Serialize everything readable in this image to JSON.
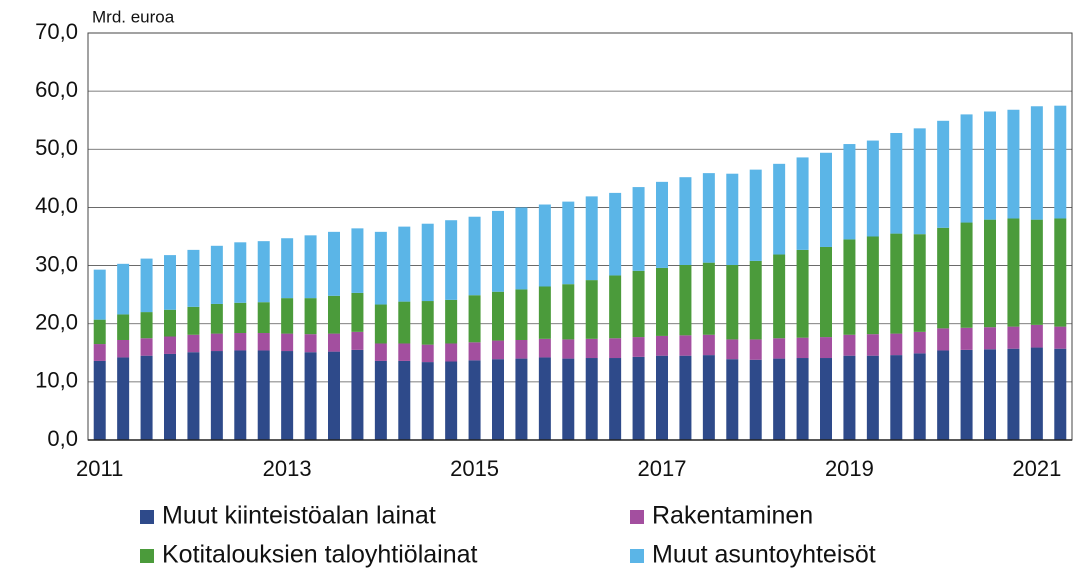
{
  "chart_data": {
    "type": "stacked_bar",
    "y_label": "Mrd. euroa",
    "categories": [
      "2011",
      null,
      null,
      null,
      null,
      null,
      null,
      null,
      "2013",
      null,
      null,
      null,
      null,
      null,
      null,
      null,
      "2015",
      null,
      null,
      null,
      null,
      null,
      null,
      null,
      "2017",
      null,
      null,
      null,
      null,
      null,
      null,
      null,
      "2019",
      null,
      null,
      null,
      null,
      null,
      null,
      null,
      "2021",
      null
    ],
    "series": [
      {
        "name": "Muut kiinteistöalan lainat",
        "color": "#2e4a8a",
        "values": [
          13.6,
          14.2,
          14.5,
          14.8,
          15.1,
          15.3,
          15.4,
          15.4,
          15.3,
          15.1,
          15.2,
          15.5,
          13.6,
          13.6,
          13.4,
          13.5,
          13.7,
          13.9,
          14.0,
          14.2,
          14.0,
          14.1,
          14.1,
          14.3,
          14.5,
          14.5,
          14.6,
          13.9,
          13.8,
          14.0,
          14.1,
          14.1,
          14.5,
          14.5,
          14.6,
          14.9,
          15.4,
          15.5,
          15.6,
          15.7,
          15.9,
          15.7
        ]
      },
      {
        "name": "Rakentaminen",
        "color": "#a34f9f",
        "values": [
          2.9,
          3.0,
          3.0,
          3.0,
          3.0,
          3.0,
          3.0,
          3.0,
          3.0,
          3.1,
          3.1,
          3.1,
          3.0,
          3.0,
          3.0,
          3.1,
          3.1,
          3.2,
          3.2,
          3.2,
          3.3,
          3.3,
          3.4,
          3.4,
          3.4,
          3.5,
          3.5,
          3.4,
          3.5,
          3.5,
          3.5,
          3.6,
          3.6,
          3.7,
          3.7,
          3.7,
          3.8,
          3.8,
          3.8,
          3.8,
          3.9,
          3.8
        ]
      },
      {
        "name": "Kotitalouksien taloyhtiölainat",
        "color": "#4b9b3b",
        "values": [
          4.2,
          4.4,
          4.5,
          4.6,
          4.8,
          5.1,
          5.2,
          5.3,
          6.1,
          6.2,
          6.5,
          6.7,
          6.7,
          7.2,
          7.5,
          7.5,
          8.1,
          8.4,
          8.7,
          9.0,
          9.5,
          10.1,
          10.8,
          11.4,
          11.7,
          12.1,
          12.4,
          12.8,
          13.5,
          14.4,
          15.1,
          15.5,
          16.4,
          16.8,
          17.2,
          16.8,
          17.3,
          18.1,
          18.5,
          18.6,
          18.1,
          18.6
        ]
      },
      {
        "name": "Muut asuntoyhteisöt",
        "color": "#5bb5e7",
        "values": [
          8.6,
          8.7,
          9.2,
          9.4,
          9.8,
          10.0,
          10.4,
          10.5,
          10.3,
          10.8,
          11.0,
          11.1,
          12.5,
          12.9,
          13.3,
          13.7,
          13.5,
          13.9,
          14.1,
          14.1,
          14.2,
          14.4,
          14.2,
          14.4,
          14.8,
          15.1,
          15.4,
          15.7,
          15.7,
          15.6,
          15.9,
          16.2,
          16.4,
          16.5,
          17.3,
          18.2,
          18.4,
          18.6,
          18.6,
          18.7,
          19.5,
          19.4
        ]
      }
    ],
    "ylim": [
      0,
      70
    ],
    "yticks": [
      {
        "value": 0,
        "label": "0,0"
      },
      {
        "value": 10,
        "label": "10,0"
      },
      {
        "value": 20,
        "label": "20,0"
      },
      {
        "value": 30,
        "label": "30,0"
      },
      {
        "value": 40,
        "label": "40,0"
      },
      {
        "value": 50,
        "label": "50,0"
      },
      {
        "value": 60,
        "label": "60,0"
      },
      {
        "value": 70,
        "label": "70,0"
      }
    ],
    "grid": true
  }
}
